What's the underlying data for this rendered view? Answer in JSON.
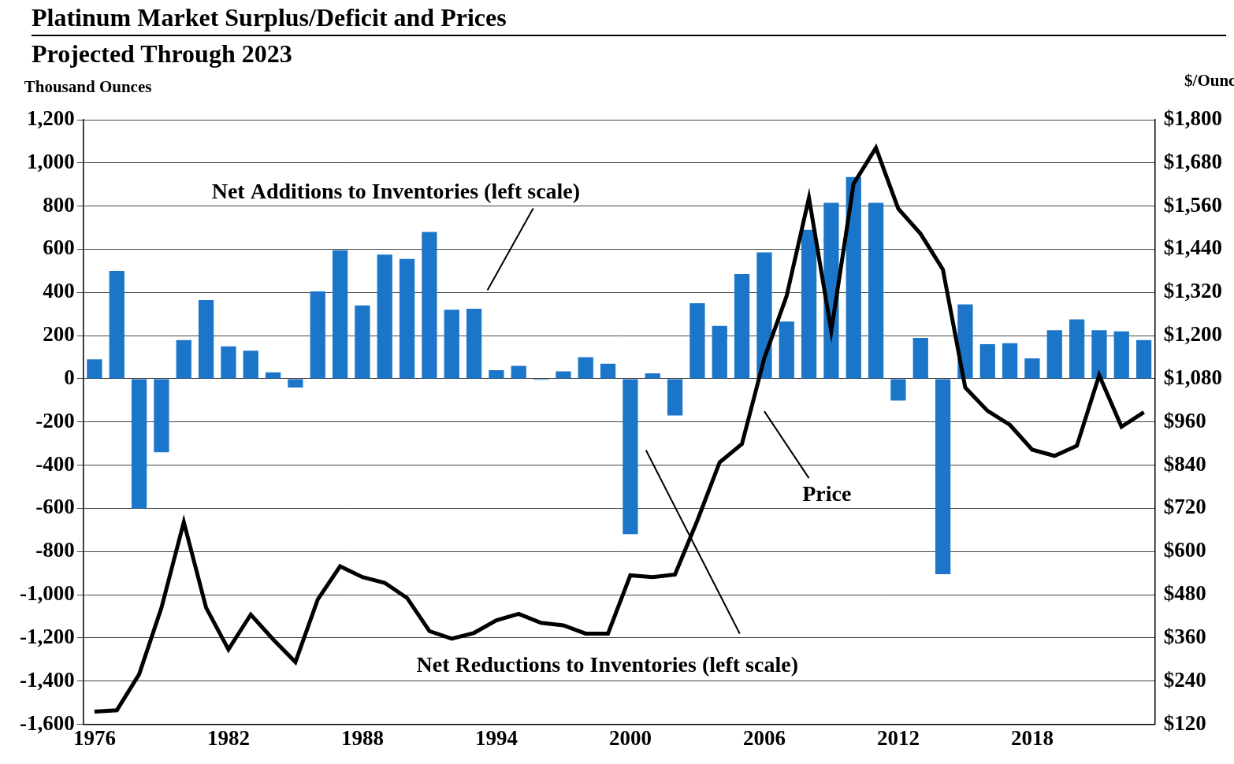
{
  "chart_data": {
    "type": "bar",
    "title": "Platinum Market Surplus/Deficit and Prices",
    "subtitle": "Projected Through 2023",
    "y_label": "Thousand Ounces",
    "y2_label": "$/Ounce",
    "annotations": [
      "Net Reductions to Inventories (left scale)"
    ],
    "categories": [
      "1976",
      null,
      null,
      null,
      null,
      null,
      "1982",
      null,
      null,
      null,
      null,
      null,
      "1988",
      null,
      null,
      null,
      null,
      null,
      "1994",
      null,
      null,
      null,
      null,
      null,
      "2000",
      null,
      null,
      null,
      null,
      null,
      "2006",
      null,
      null,
      null,
      null,
      null,
      "2012",
      null,
      null,
      null,
      null,
      null,
      "2018",
      null,
      null,
      null,
      null,
      null
    ],
    "series": [
      {
        "name": "Net Additions to Inventories (left scale)",
        "type": "bar",
        "color": "#1b75c8",
        "values": [
          90,
          500,
          -600,
          -340,
          180,
          365,
          150,
          130,
          30,
          -40,
          405,
          595,
          340,
          575,
          555,
          680,
          320,
          325,
          40,
          60,
          -5,
          35,
          100,
          70,
          -720,
          25,
          -170,
          350,
          245,
          485,
          585,
          265,
          690,
          815,
          935,
          815,
          -100,
          190,
          -905,
          345,
          160,
          165,
          95,
          225,
          275,
          225,
          220,
          180
        ]
      },
      {
        "name": "Price",
        "type": "line",
        "color": "#000000",
        "axis": "y2",
        "marker": "none",
        "line_style": "solid",
        "values": [
          155,
          159,
          259,
          444,
          682,
          444,
          328,
          425,
          356,
          293,
          467,
          559,
          529,
          513,
          471,
          379,
          358,
          374,
          409,
          427,
          402,
          395,
          372,
          372,
          534,
          529,
          536,
          686,
          848,
          899,
          1137,
          1310,
          1583,
          1213,
          1622,
          1722,
          1553,
          1483,
          1384,
          1056,
          991,
          952,
          883,
          866,
          894,
          1090,
          947,
          987
        ]
      }
    ],
    "ylim": [
      -1600,
      1200
    ],
    "yticks": [
      {
        "value": -1600,
        "label": "-1,600"
      },
      {
        "value": -1400,
        "label": "-1,400"
      },
      {
        "value": -1200,
        "label": "-1,200"
      },
      {
        "value": -1000,
        "label": "-1,000"
      },
      -800,
      -600,
      -400,
      -200,
      0,
      200,
      400,
      600,
      800,
      {
        "value": 1000,
        "label": "1,000"
      },
      {
        "value": 1200,
        "label": "1,200"
      }
    ],
    "y2lim": [
      120,
      1800
    ],
    "y2ticks": [
      {
        "value": 120,
        "label": "$120"
      },
      {
        "value": 240,
        "label": "$240"
      },
      {
        "value": 360,
        "label": "$360"
      },
      {
        "value": 480,
        "label": "$480"
      },
      {
        "value": 600,
        "label": "$600"
      },
      {
        "value": 720,
        "label": "$720"
      },
      {
        "value": 840,
        "label": "$840"
      },
      {
        "value": 960,
        "label": "$960"
      },
      {
        "value": 1080,
        "label": "$1,080"
      },
      {
        "value": 1200,
        "label": "$1,200"
      },
      {
        "value": 1320,
        "label": "$1,320"
      },
      {
        "value": 1440,
        "label": "$1,440"
      },
      {
        "value": 1560,
        "label": "$1,560"
      },
      {
        "value": 1680,
        "label": "$1,680"
      },
      {
        "value": 1800,
        "label": "$1,800"
      }
    ],
    "grid": true
  }
}
